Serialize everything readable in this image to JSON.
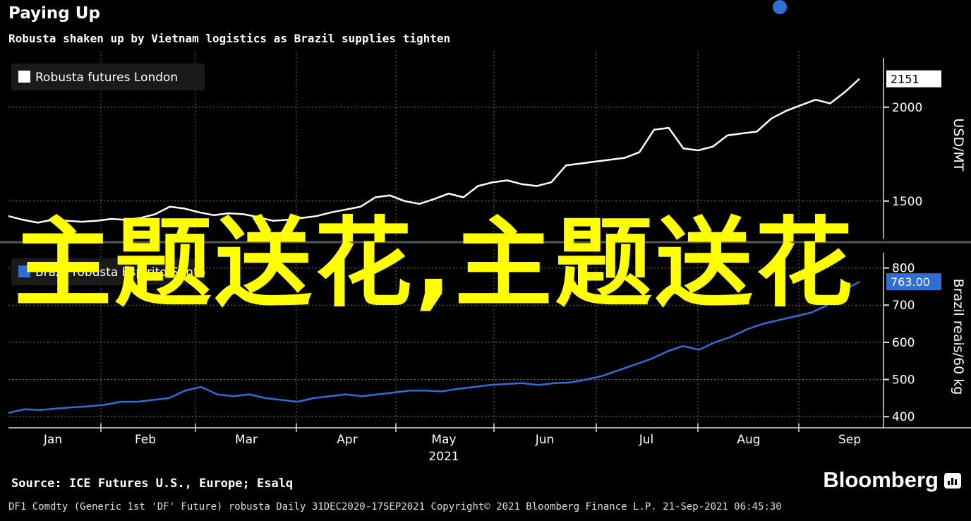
{
  "header": {
    "title": "Paying Up",
    "subtitle": "Robusta shaken up by Vietnam logistics as Brazil supplies tighten"
  },
  "overlay_text": "主题送花,主题送花",
  "footer": {
    "source": "Source: ICE Futures U.S., Europe; Esalq",
    "brand": "Bloomberg",
    "line": "DF1 Comdty (Generic 1st 'DF' Future) robusta  Daily 31DEC2020-17SEP2021  Copyright© 2021 Bloomberg Finance L.P.  21-Sep-2021 06:45:30"
  },
  "colors": {
    "series_top": "#ffffff",
    "series_bottom": "#2f6fd4",
    "overlay": "#ffff00"
  },
  "chart_data": [
    {
      "type": "line",
      "series": [
        {
          "name": "Robusta futures London",
          "values": [
            1420,
            1400,
            1385,
            1400,
            1395,
            1390,
            1395,
            1405,
            1400,
            1410,
            1430,
            1470,
            1460,
            1440,
            1425,
            1435,
            1430,
            1415,
            1395,
            1400,
            1410,
            1420,
            1440,
            1455,
            1470,
            1520,
            1530,
            1500,
            1485,
            1510,
            1540,
            1520,
            1580,
            1600,
            1610,
            1590,
            1580,
            1600,
            1690,
            1700,
            1710,
            1720,
            1730,
            1760,
            1880,
            1890,
            1780,
            1770,
            1790,
            1850,
            1860,
            1870,
            1940,
            1980,
            2010,
            2040,
            2020,
            2080,
            2151
          ]
        }
      ],
      "x_range": [
        "2020-12-31",
        "2021-09-17"
      ],
      "x_ticks": [
        "Jan",
        "Feb",
        "Mar",
        "Apr",
        "May",
        "Jun",
        "Jul",
        "Aug",
        "Sep"
      ],
      "x_year": "2021",
      "y_ticks": [
        1500,
        2000
      ],
      "ylabel": "USD/MT",
      "last_value_label": "2151",
      "legend_position": "top-left",
      "grid": true
    },
    {
      "type": "line",
      "series": [
        {
          "name": "Brazil robusta Espirito Santo",
          "values": [
            410,
            420,
            418,
            422,
            425,
            428,
            432,
            440,
            440,
            445,
            450,
            470,
            480,
            460,
            455,
            460,
            450,
            445,
            440,
            450,
            455,
            460,
            455,
            460,
            465,
            470,
            470,
            468,
            475,
            480,
            485,
            488,
            490,
            485,
            490,
            492,
            500,
            510,
            525,
            540,
            555,
            575,
            590,
            580,
            600,
            615,
            635,
            650,
            660,
            670,
            680,
            700,
            740,
            763
          ]
        }
      ],
      "y_ticks": [
        400,
        500,
        600,
        700,
        800
      ],
      "ylabel": "Brazil reais/60 kg",
      "last_value_label": "763.00",
      "legend_position": "top-left",
      "grid": true
    }
  ]
}
